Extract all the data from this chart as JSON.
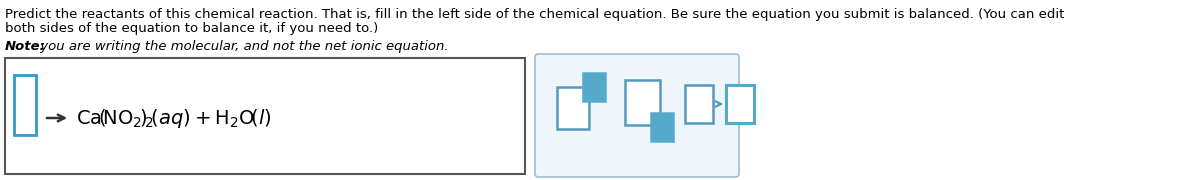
{
  "bg_color": "#ffffff",
  "text_color": "#000000",
  "para1_line1": "Predict the reactants of this chemical reaction. That is, fill in the left side of the chemical equation. Be sure the equation you submit is balanced. (You can edit",
  "para1_line2": "both sides of the equation to balance it, if you need to.)",
  "note_bold": "Note:",
  "note_rest": " you are writing the molecular, and not the net ionic equation.",
  "font_size_para": 9.5,
  "font_size_note": 9.5,
  "font_size_formula": 14,
  "left_box_border": "#555555",
  "right_box_border": "#a0bece",
  "right_box_bg": "#eef5fb",
  "input_box_color": "#3399cc",
  "icon_box_color": "#5599bb",
  "icon_filled_color": "#55aacc",
  "arrow_color": "#333333"
}
